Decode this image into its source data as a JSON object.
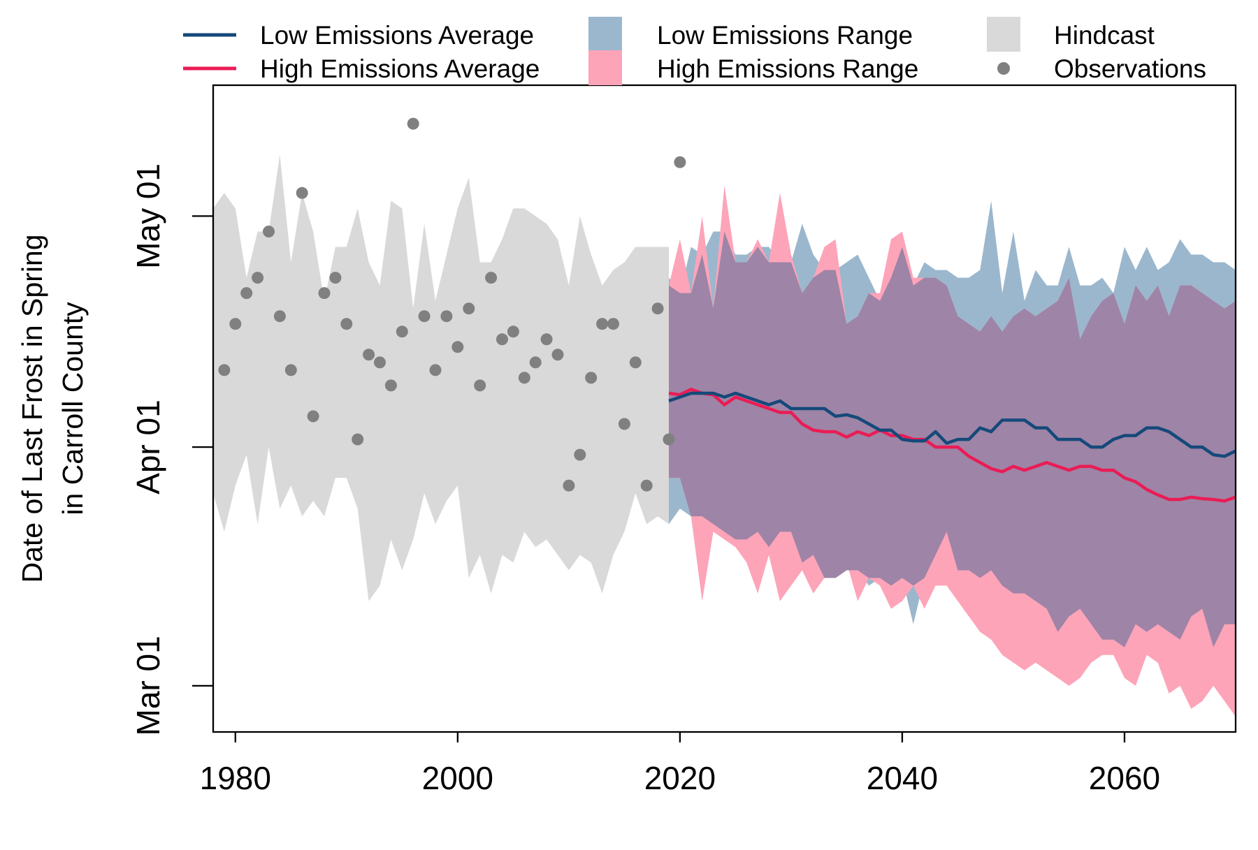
{
  "chart_data": {
    "type": "area",
    "ylabel": [
      "Date of Last Frost in Spring",
      "in Carroll County"
    ],
    "xlabel": "",
    "x_ticks": [
      "1980",
      "2000",
      "2020",
      "2040",
      "2060"
    ],
    "y_ticks": [
      {
        "label": "Mar 01",
        "day_of_year": 60
      },
      {
        "label": "Apr 01",
        "day_of_year": 91
      },
      {
        "label": "May 01",
        "day_of_year": 121
      }
    ],
    "xlim": [
      1978,
      2070
    ],
    "ylim_day_of_year": [
      54,
      138
    ],
    "colors": {
      "low_avg": "#15497a",
      "high_avg": "#ea1c55",
      "low_range": "#9bb7cd",
      "high_range": "#fda4b9",
      "overlap": "#9e84a6",
      "hindcast": "#d9d9d9",
      "observations": "#808080"
    },
    "legend": [
      {
        "key": "low_avg",
        "label": "Low Emissions Average",
        "symbol": "line"
      },
      {
        "key": "high_avg",
        "label": "High Emissions Average",
        "symbol": "line"
      },
      {
        "key": "low_range",
        "label": "Low Emissions Range",
        "symbol": "box"
      },
      {
        "key": "high_range",
        "label": "High Emissions Range",
        "symbol": "box"
      },
      {
        "key": "hindcast",
        "label": "Hindcast",
        "symbol": "box"
      },
      {
        "key": "observations",
        "label": "Observations",
        "symbol": "point"
      }
    ],
    "hindcast": {
      "years": [
        1978,
        1979,
        1980,
        1981,
        1982,
        1983,
        1984,
        1985,
        1986,
        1987,
        1988,
        1989,
        1990,
        1991,
        1992,
        1993,
        1994,
        1995,
        1996,
        1997,
        1998,
        1999,
        2000,
        2001,
        2002,
        2003,
        2004,
        2005,
        2006,
        2007,
        2008,
        2009,
        2010,
        2011,
        2012,
        2013,
        2014,
        2015,
        2016,
        2017,
        2018,
        2019
      ],
      "upper": [
        122,
        124,
        122,
        113,
        119,
        119,
        129,
        115,
        124,
        119,
        110,
        117,
        117,
        122,
        115,
        112,
        123,
        122,
        109,
        120,
        110,
        116,
        122,
        126,
        115,
        115,
        118,
        122,
        122,
        121,
        120,
        118,
        112,
        121,
        116,
        112,
        114,
        115,
        117,
        117,
        117,
        117
      ],
      "lower": [
        85,
        80,
        86,
        90,
        81,
        91,
        83,
        86,
        82,
        84,
        82,
        87,
        87,
        83,
        71,
        73,
        79,
        75,
        79,
        85,
        81,
        84,
        86,
        74,
        77,
        72,
        77,
        76,
        80,
        78,
        79,
        77,
        75,
        77,
        76,
        72,
        77,
        80,
        85,
        81,
        82,
        81
      ]
    },
    "observations": {
      "years": [
        1979,
        1980,
        1981,
        1982,
        1983,
        1984,
        1985,
        1986,
        1987,
        1988,
        1989,
        1990,
        1991,
        1992,
        1993,
        1994,
        1995,
        1996,
        1997,
        1998,
        1999,
        2000,
        2001,
        2002,
        2003,
        2004,
        2005,
        2006,
        2007,
        2008,
        2009,
        2010,
        2011,
        2012,
        2013,
        2014,
        2015,
        2016,
        2017,
        2018,
        2019,
        2020
      ],
      "values": [
        101,
        107,
        111,
        113,
        119,
        108,
        101,
        124,
        95,
        111,
        113,
        107,
        92,
        103,
        102,
        99,
        106,
        133,
        108,
        101,
        108,
        104,
        109,
        99,
        113,
        105,
        106,
        100,
        102,
        105,
        103,
        86,
        90,
        100,
        107,
        107,
        94,
        102,
        86,
        109,
        92,
        128
      ]
    },
    "projections": {
      "years": [
        2019,
        2020,
        2021,
        2022,
        2023,
        2024,
        2025,
        2026,
        2027,
        2028,
        2029,
        2030,
        2031,
        2032,
        2033,
        2034,
        2035,
        2036,
        2037,
        2038,
        2039,
        2040,
        2041,
        2042,
        2043,
        2044,
        2045,
        2046,
        2047,
        2048,
        2049,
        2050,
        2051,
        2052,
        2053,
        2054,
        2055,
        2056,
        2057,
        2058,
        2059,
        2060,
        2061,
        2062,
        2063,
        2064,
        2065,
        2066,
        2067,
        2068,
        2069,
        2070
      ],
      "low_avg": [
        97,
        97.5,
        98,
        98,
        98,
        97.5,
        98,
        97.5,
        97,
        96.5,
        97,
        96,
        96,
        96,
        96,
        95,
        95.2,
        94.8,
        94,
        93.2,
        93.2,
        92,
        91.8,
        91.8,
        93,
        91.5,
        92,
        92,
        93.5,
        93,
        94.5,
        94.5,
        94.5,
        93.5,
        93.5,
        92,
        92,
        92,
        91,
        91,
        92,
        92.5,
        92.5,
        93.5,
        93.5,
        93,
        92,
        91,
        91,
        90,
        89.8,
        90.5
      ],
      "high_avg": [
        98,
        97.8,
        98.5,
        98,
        97.8,
        96.5,
        97.5,
        97,
        96.5,
        96,
        95.5,
        95.5,
        94,
        93.2,
        93,
        93,
        92.3,
        93,
        92.5,
        93.2,
        92.5,
        92.5,
        92,
        92,
        91,
        91,
        91,
        89.8,
        89,
        88.2,
        87.8,
        88.5,
        88,
        88.5,
        89,
        88.5,
        88,
        88.5,
        88.5,
        88,
        88,
        87,
        86.5,
        85.5,
        84.8,
        84.2,
        84.2,
        84.5,
        84.3,
        84.2,
        84,
        84.5
      ],
      "low_upper": [
        113,
        111,
        117,
        116,
        119,
        119,
        116,
        116,
        117,
        117,
        115,
        115,
        120,
        116,
        114,
        114,
        115,
        116,
        113,
        110,
        113,
        117,
        112,
        115,
        114,
        114,
        113,
        113,
        114,
        123,
        111,
        119,
        110,
        114,
        112,
        112,
        117,
        112,
        112,
        113,
        111,
        117,
        114,
        117,
        114,
        115,
        118,
        116,
        116,
        115,
        115,
        114
      ],
      "low_lower": [
        81,
        83,
        82,
        82,
        81,
        80,
        79,
        79,
        80,
        78,
        80,
        80,
        76,
        77,
        74,
        74,
        75,
        75,
        73,
        74,
        73,
        74,
        68,
        74,
        77,
        80,
        75,
        75,
        74,
        75,
        73,
        72,
        72,
        71,
        70,
        67,
        69,
        70,
        68,
        66,
        66,
        65,
        68,
        67,
        68,
        67,
        66,
        69,
        70,
        65,
        68,
        68
      ],
      "high_upper": [
        112,
        118,
        111,
        121,
        109,
        125,
        115,
        115,
        118,
        115,
        124,
        116,
        111,
        113,
        117,
        118,
        107,
        108,
        111,
        111,
        118,
        119,
        113,
        113,
        113,
        112,
        108,
        107,
        106,
        108,
        106,
        108,
        109,
        108,
        109,
        110,
        113,
        105,
        108,
        110,
        111,
        107,
        112,
        110,
        112,
        108,
        112,
        112,
        111,
        110,
        109,
        110
      ],
      "high_lower": [
        87,
        87,
        82,
        71,
        80,
        79,
        78,
        76,
        72,
        77,
        71,
        73,
        75,
        72,
        74,
        78,
        76,
        71,
        74,
        73,
        70,
        71,
        73,
        70,
        73,
        73,
        71,
        69,
        67,
        66,
        64,
        63,
        62,
        63,
        62,
        61,
        60,
        61,
        63,
        64,
        64,
        61,
        60,
        64,
        63,
        59,
        60,
        57,
        58,
        60,
        58,
        56
      ],
      "overlap_upper": [
        112,
        111,
        111,
        116,
        109,
        119,
        115,
        115,
        117,
        115,
        115,
        115,
        111,
        113,
        114,
        114,
        107,
        108,
        111,
        110,
        113,
        117,
        112,
        113,
        113,
        112,
        108,
        107,
        106,
        108,
        106,
        108,
        109,
        108,
        109,
        110,
        113,
        105,
        108,
        110,
        111,
        107,
        112,
        110,
        112,
        108,
        112,
        112,
        111,
        110,
        109,
        110
      ],
      "overlap_lower": [
        87,
        87,
        82,
        82,
        81,
        80,
        79,
        79,
        80,
        78,
        80,
        80,
        76,
        77,
        74,
        74,
        75,
        75,
        74,
        74,
        73,
        74,
        73,
        74,
        77,
        80,
        75,
        75,
        74,
        75,
        73,
        72,
        72,
        71,
        70,
        67,
        69,
        70,
        68,
        66,
        66,
        65,
        68,
        67,
        68,
        67,
        66,
        69,
        70,
        65,
        68,
        68
      ]
    }
  }
}
